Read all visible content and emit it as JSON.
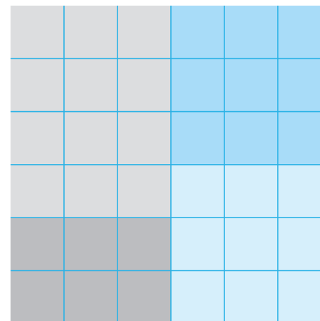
{
  "grid": {
    "rows": 6,
    "cols": 6,
    "regions": [
      {
        "name": "top-left-region",
        "row_start": 0,
        "row_end": 4,
        "col_start": 0,
        "col_end": 3,
        "color": "#dcdddf"
      },
      {
        "name": "top-right-region",
        "row_start": 0,
        "row_end": 3,
        "col_start": 3,
        "col_end": 6,
        "color": "#a8dcf8"
      },
      {
        "name": "middle-right-region",
        "row_start": 3,
        "row_end": 6,
        "col_start": 3,
        "col_end": 6,
        "color": "#d6effb"
      },
      {
        "name": "bottom-left-region",
        "row_start": 4,
        "row_end": 6,
        "col_start": 0,
        "col_end": 3,
        "color": "#bcbdc0"
      }
    ],
    "line_color": "#29b2e6"
  }
}
